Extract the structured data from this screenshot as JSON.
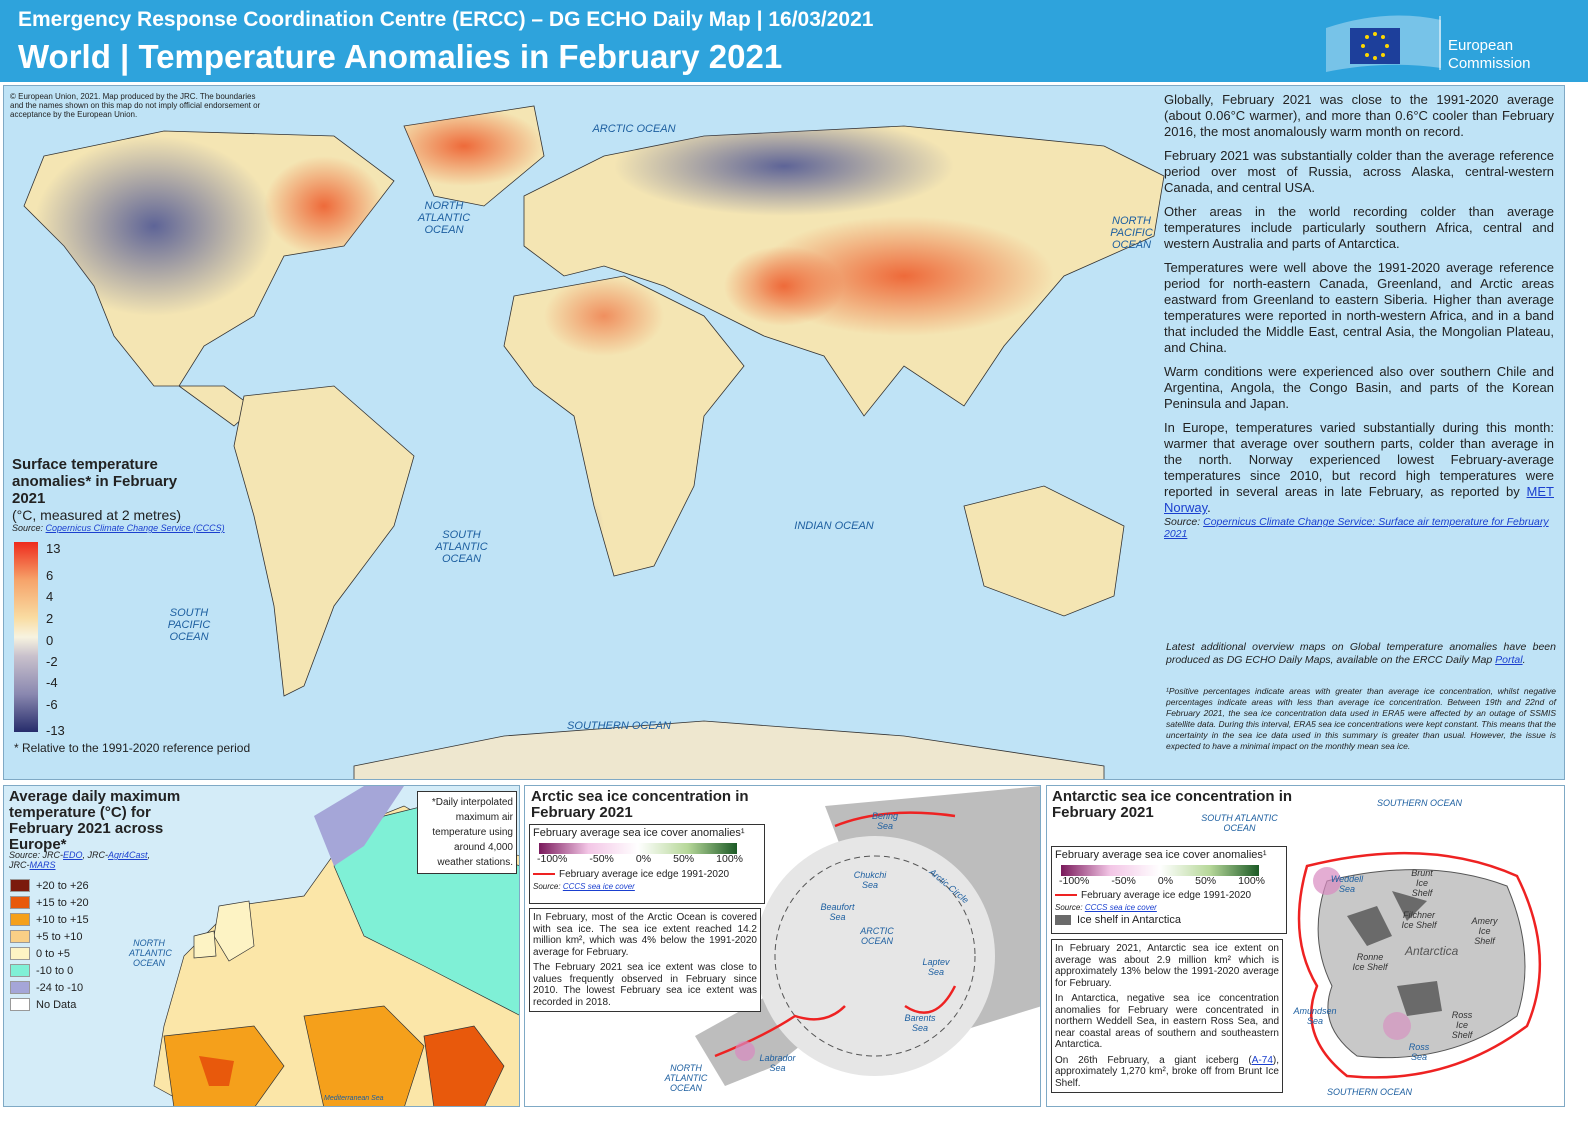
{
  "header": {
    "line1": "Emergency Response Coordination Centre (ERCC) – DG ECHO Daily Map | 16/03/2021",
    "title": "World | Temperature Anomalies in February 2021"
  },
  "logo": {
    "line1": "European",
    "line2": "Commission"
  },
  "main_map": {
    "credit": "© European Union, 2021. Map produced by the JRC. The boundaries and the names shown on this map do not imply official endorsement or acceptance by the European Union.",
    "ocean_labels": [
      "ARCTIC OCEAN",
      "NORTH ATLANTIC OCEAN",
      "NORTH PACIFIC OCEAN",
      "SOUTH ATLANTIC OCEAN",
      "INDIAN OCEAN",
      "SOUTH PACIFIC OCEAN",
      "SOUTHERN OCEAN"
    ],
    "legend": {
      "title": "Surface temperature anomalies* in February 2021",
      "subtitle": "(°C, measured at 2 metres)",
      "source_label": "Source:",
      "source_link": "Copernicus Climate Change Service (CCCS)",
      "ticks": [
        "13",
        "6",
        "4",
        "2",
        "0",
        "-2",
        "-4",
        "-6",
        "-13"
      ],
      "footnote": "* Relative to the 1991-2020 reference period"
    }
  },
  "text_panel": {
    "paragraphs": [
      "Globally, February 2021 was close to the 1991-2020 average (about 0.06°C warmer), and more than 0.6°C cooler than February 2016, the most anomalously warm month on record.",
      "February 2021 was substantially colder than the average reference period over most of Russia, across Alaska, central-western Canada, and central USA.",
      "Other areas in the world recording colder than average temperatures include particularly southern Africa, central and western Australia and parts of Antarctica.",
      "Temperatures were well above the 1991-2020 average reference period for north-eastern Canada, Greenland, and Arctic areas eastward from Greenland to eastern Siberia. Higher than average temperatures were reported in north-western Africa, and in a band that included the Middle East, central Asia, the Mongolian Plateau, and China.",
      "Warm conditions were experienced also over southern Chile and Argentina, Angola, the Congo Basin, and parts of the Korean Peninsula and Japan."
    ],
    "europe_paragraph": {
      "text": "In Europe, temperatures varied substantially during this month: warmer that average over southern parts, colder than average in the north. Norway experienced lowest February-average temperatures since 2010, but record high temperatures were reported in several areas in late February, as reported by ",
      "link": "MET Norway",
      "end": "."
    },
    "source": {
      "label": "Source:",
      "link": "Copernicus Climate Change Service: Surface air temperature for February 2021"
    },
    "latest": {
      "text": "Latest additional overview maps on Global temperature anomalies have been produced as DG ECHO Daily Maps, available on the ERCC Daily Map ",
      "link": "Portal",
      "end": "."
    },
    "footnote": "¹Positive percentages indicate areas with greater than average ice concentration, whilst negative percentages indicate areas with less than average ice concentration. Between 19th and 22nd of February 2021, the sea ice concentration data used in ERA5 were affected by an outage of SSMIS satellite data. During this interval, ERA5 sea ice concentrations were kept constant. This means that the uncertainty in the sea ice data used in this summary is greater than usual. However, the issue is expected to have a minimal impact on the monthly mean sea ice."
  },
  "europe_panel": {
    "title": "Average daily maximum temperature (°C) for February 2021 across Europe*",
    "source": [
      "Source: JRC-",
      "EDO",
      ", JRC-",
      "Agri4Cast",
      ", JRC-",
      "MARS"
    ],
    "note": "*Daily interpolated maximum air temperature using around 4,000 weather stations.",
    "legend": [
      {
        "label": "+20 to +26",
        "color": "#7b1a0c"
      },
      {
        "label": "+15 to +20",
        "color": "#e8590c"
      },
      {
        "label": "+10 to +15",
        "color": "#f5a01b"
      },
      {
        "label": "+5 to +10",
        "color": "#f9cf86"
      },
      {
        "label": "0 to +5",
        "color": "#fdf3c4"
      },
      {
        "label": "-10 to 0",
        "color": "#7ff0d6"
      },
      {
        "label": "-24 to -10",
        "color": "#a5a6d8"
      },
      {
        "label": "No Data",
        "color": "#ffffff"
      }
    ],
    "places": [
      "NORTH ATLANTIC OCEAN",
      "Mediterranean Sea"
    ]
  },
  "arctic_panel": {
    "title": "Arctic sea ice concentration in February 2021",
    "legend_title": "February average sea ice cover anomalies¹",
    "legend_ticks": [
      "-100%",
      "-50%",
      "0%",
      "50%",
      "100%"
    ],
    "edge_label": "February average ice edge 1991-2020",
    "source_label": "Source:",
    "source_link": "CCCS sea ice cover",
    "paragraphs": [
      "In February, most of the Arctic Ocean is covered with sea ice. The sea ice extent reached 14.2 million km², which was 4% below the 1991-2020 average for February.",
      "The February 2021 sea ice extent was close to values frequently observed in February since 2010. The lowest February sea ice extent was recorded in 2018."
    ],
    "places": [
      "Bering Sea",
      "Chukchi Sea",
      "Beaufort Sea",
      "ARCTIC OCEAN",
      "Laptev Sea",
      "Barents Sea",
      "Labrador Sea",
      "NORTH ATLANTIC OCEAN",
      "Arctic Circle"
    ]
  },
  "antarctic_panel": {
    "title": "Antarctic sea ice concentration in February 2021",
    "legend_title": "February average sea ice cover anomalies¹",
    "legend_ticks": [
      "-100%",
      "-50%",
      "0%",
      "50%",
      "100%"
    ],
    "edge_label": "February average ice edge 1991-2020",
    "source_label": "Source:",
    "source_link": "CCCS sea ice cover",
    "shelf_label": "Ice shelf in Antarctica",
    "paragraphs": [
      "In February 2021, Antarctic sea ice extent on average was about 2.9 million km² which is approximately 13% below the 1991-2020 average for February.",
      "In Antarctica, negative sea ice concentration anomalies for February were concentrated in northern Weddell Sea, in eastern Ross Sea, and near coastal areas of southern and southeastern Antarctica."
    ],
    "iceberg": {
      "text": "On 26th February, a giant iceberg (",
      "link": "A-74",
      "end": "), approximately 1,270 km², broke off from Brunt Ice Shelf."
    },
    "places": [
      "SOUTHERN OCEAN",
      "SOUTH ATLANTIC OCEAN",
      "Weddell Sea",
      "Brunt Ice Shelf",
      "Filchner Ice Shelf",
      "Amery Ice Shelf",
      "Antarctica",
      "Ronne Ice Shelf",
      "Amundsen Sea",
      "Ross Ice Shelf",
      "Ross Sea",
      "SOUTHERN OCEAN"
    ]
  }
}
